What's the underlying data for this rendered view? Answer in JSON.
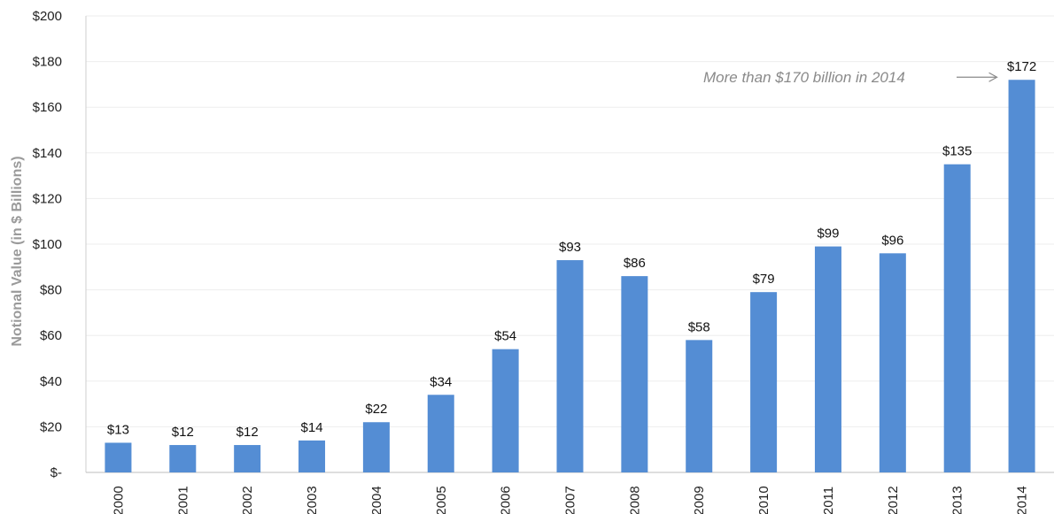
{
  "chart_data": {
    "type": "bar",
    "title": "",
    "ylabel": "Notional Value (in $ Billions)",
    "xlabel": "",
    "categories": [
      "2000",
      "2001",
      "2002",
      "2003",
      "2004",
      "2005",
      "2006",
      "2007",
      "2008",
      "2009",
      "2010",
      "2011",
      "2012",
      "2013",
      "2014"
    ],
    "values": [
      13,
      12,
      12,
      14,
      22,
      34,
      54,
      93,
      86,
      58,
      79,
      99,
      96,
      135,
      172
    ],
    "data_labels": [
      "$13",
      "$12",
      "$12",
      "$14",
      "$22",
      "$34",
      "$54",
      "$93",
      "$86",
      "$58",
      "$79",
      "$99",
      "$96",
      "$135",
      "$172"
    ],
    "ylim": [
      0,
      200
    ],
    "yticks": [
      0,
      20,
      40,
      60,
      80,
      100,
      120,
      140,
      160,
      180,
      200
    ],
    "ytick_labels": [
      "$-",
      "$20",
      "$40",
      "$60",
      "$80",
      "$100",
      "$120",
      "$140",
      "$160",
      "$180",
      "$200"
    ],
    "grid": true,
    "bar_color": "#548dd4",
    "grid_color": "#ededed",
    "annotation": {
      "text": "More than $170 billion in 2014",
      "arrow": "right",
      "target_category": "2014"
    }
  }
}
